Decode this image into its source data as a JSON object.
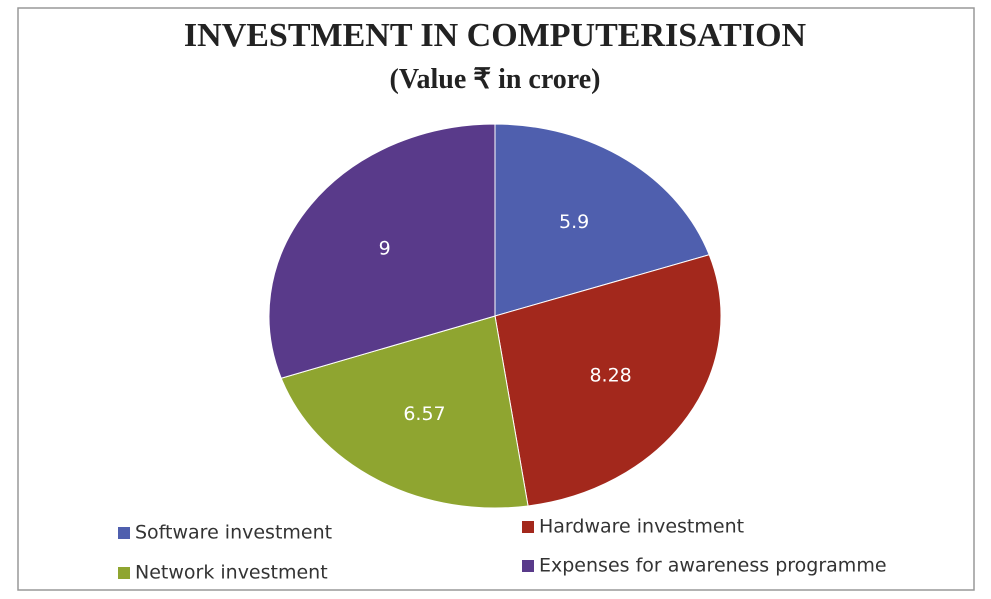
{
  "chart_data": {
    "type": "pie",
    "title": "INVESTMENT IN COMPUTERISATION",
    "subtitle": "(Value ₹ in crore)",
    "categories": [
      "Software investment",
      "Hardware investment",
      "Network investment",
      "Expenses for awareness programme"
    ],
    "values": [
      5.9,
      8.28,
      6.57,
      9
    ],
    "colors": [
      "#4f5fae",
      "#a3281c",
      "#8fa530",
      "#593a8a"
    ],
    "legend": "bottom"
  }
}
